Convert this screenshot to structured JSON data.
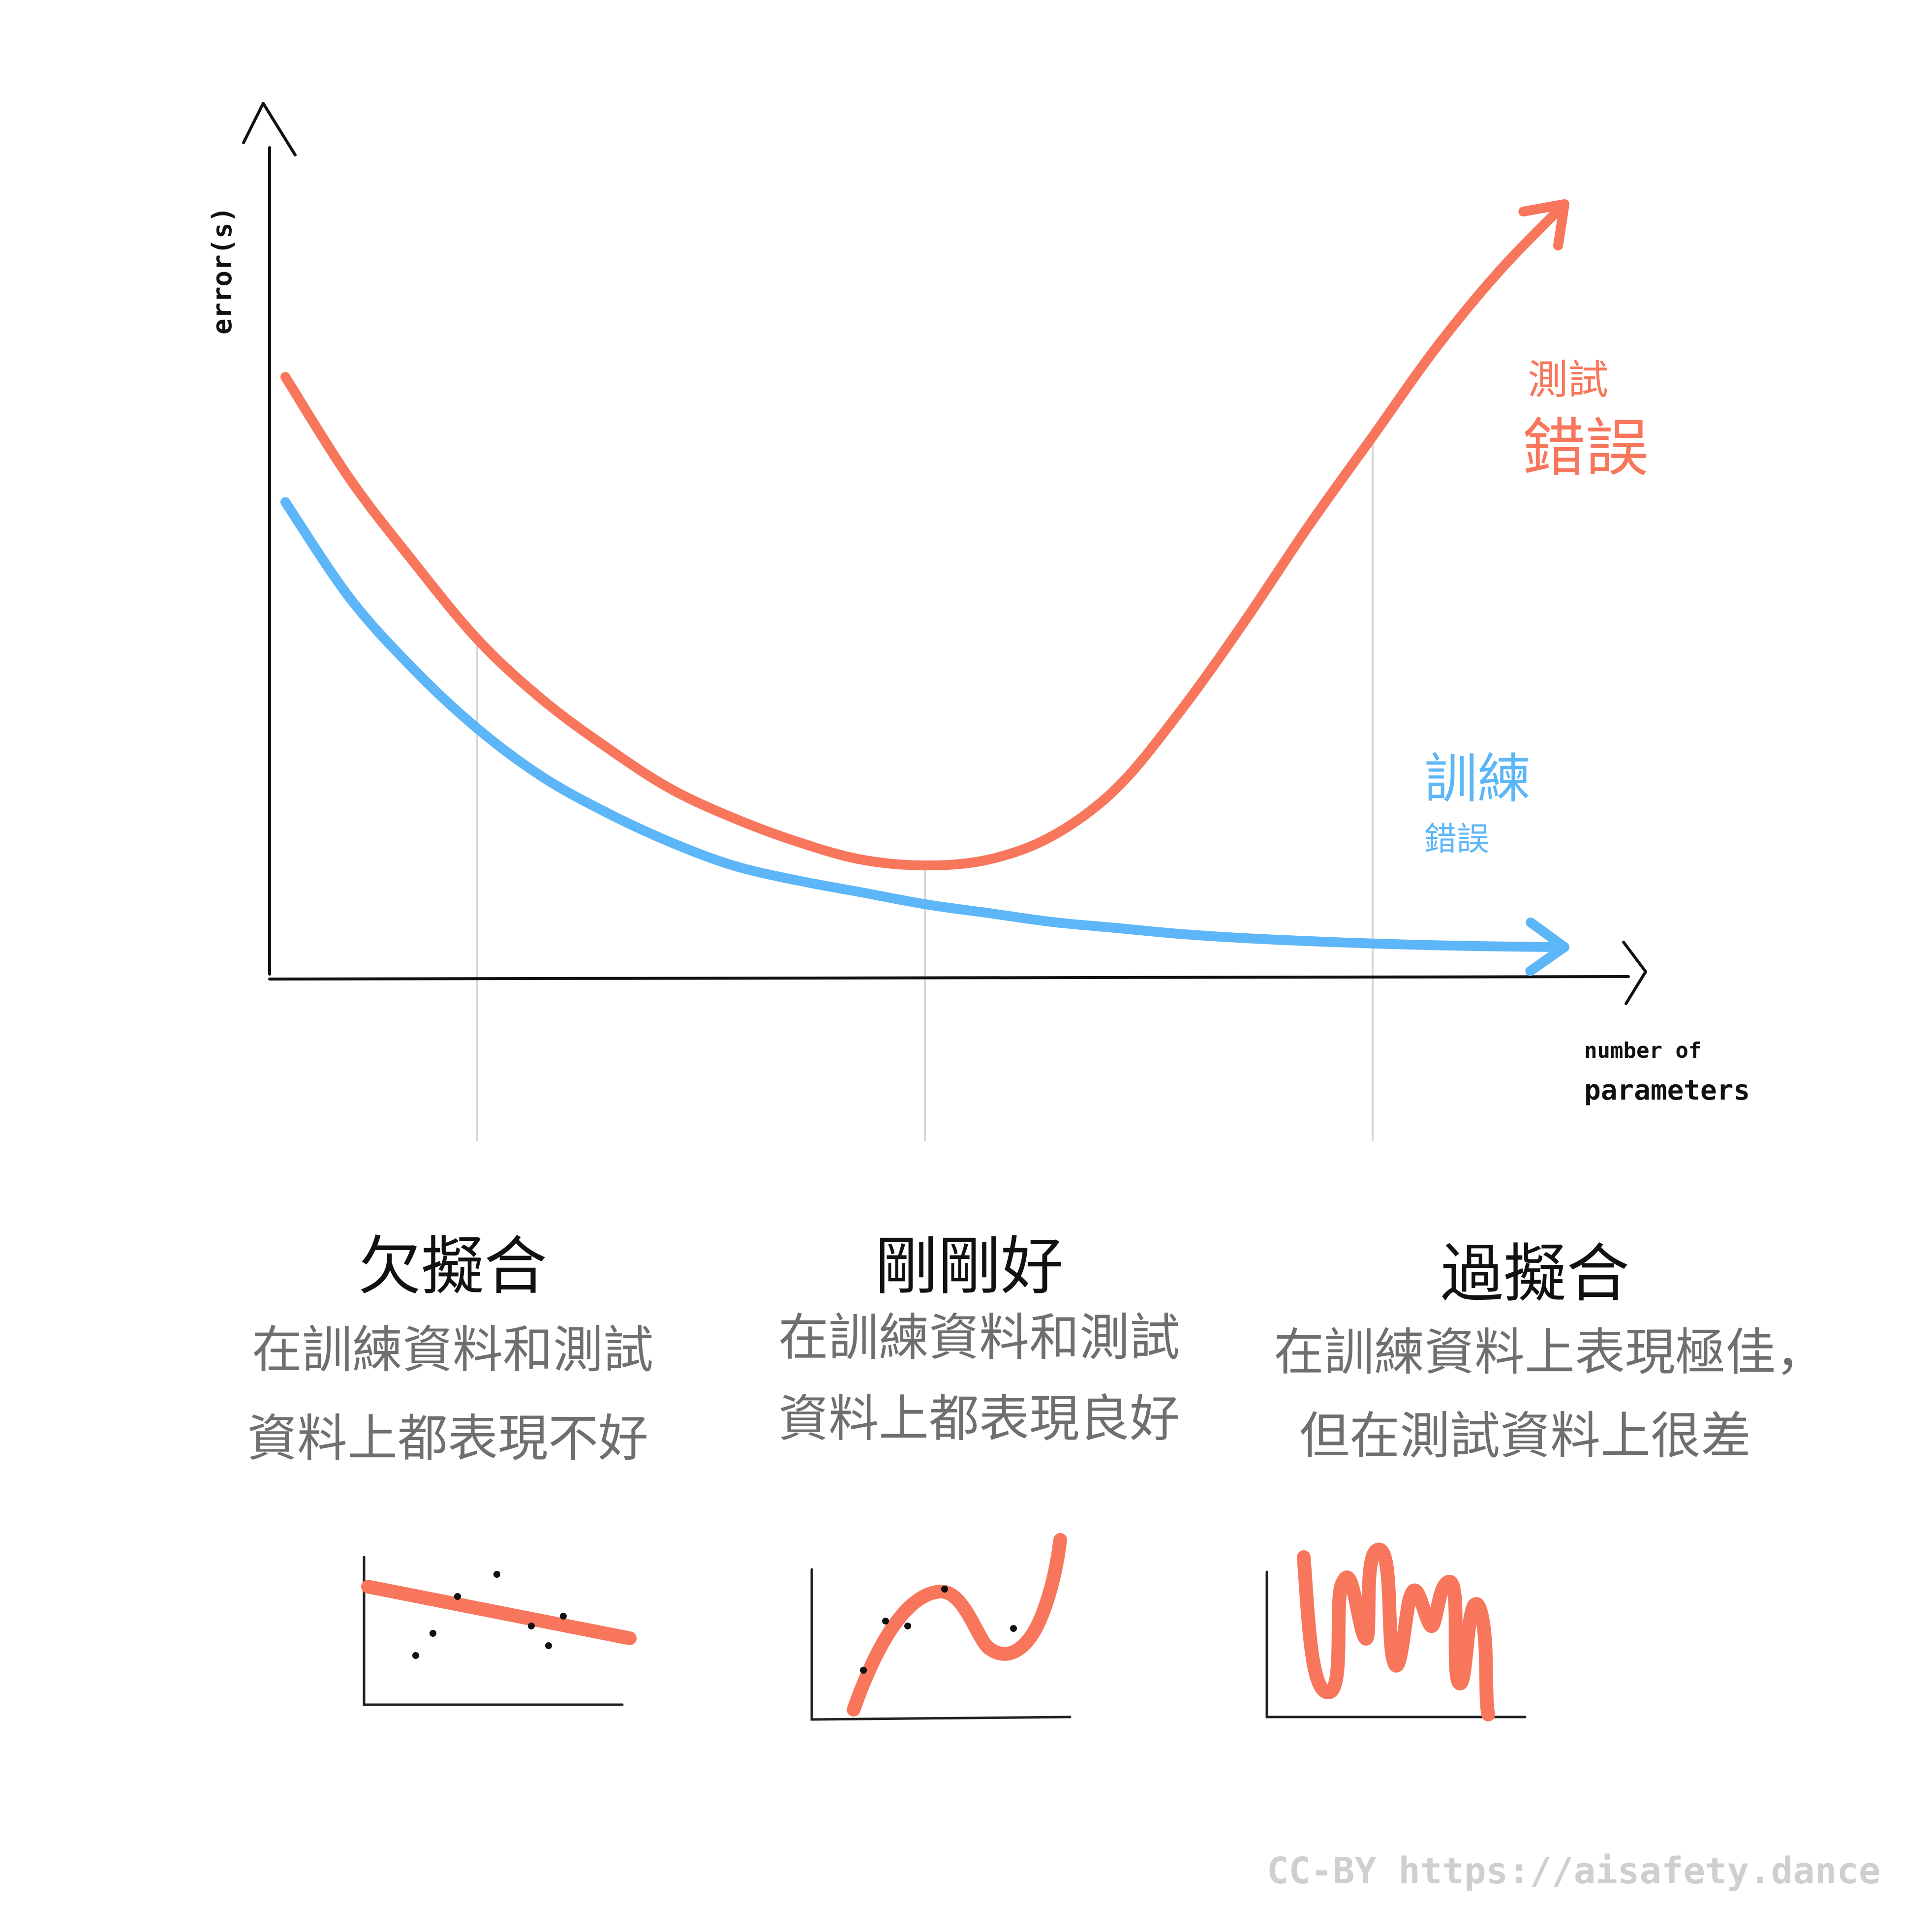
{
  "chart_data": {
    "type": "line",
    "xlabel": "number of parameters",
    "xlabel_lines": [
      "number of",
      "parameters"
    ],
    "ylabel": "error(s)",
    "grid": false,
    "legend": "inline labels at right end of curves",
    "colors": {
      "test": "#f7765c",
      "train": "#5cb6f7",
      "axis": "#111111",
      "guide": "#d6d6d6"
    },
    "x": [
      0,
      1,
      2,
      3,
      4,
      5,
      6,
      7,
      8,
      9,
      10,
      11,
      12,
      13,
      14,
      15,
      16,
      17,
      18,
      19,
      20
    ],
    "series": [
      {
        "name": "測試錯誤",
        "label_lines": [
          "測試",
          "錯誤"
        ],
        "values": [
          0.99,
          0.82,
          0.68,
          0.55,
          0.45,
          0.37,
          0.3,
          0.25,
          0.21,
          0.18,
          0.17,
          0.18,
          0.22,
          0.3,
          0.43,
          0.58,
          0.74,
          0.89,
          1.04,
          1.17,
          1.28
        ]
      },
      {
        "name": "訓練錯誤",
        "label_lines": [
          "訓練",
          "錯誤"
        ],
        "values": [
          0.78,
          0.62,
          0.5,
          0.4,
          0.32,
          0.26,
          0.21,
          0.17,
          0.145,
          0.125,
          0.105,
          0.09,
          0.075,
          0.065,
          0.055,
          0.048,
          0.043,
          0.039,
          0.036,
          0.034,
          0.033
        ]
      }
    ],
    "regimes": [
      {
        "title": "欠擬合",
        "desc_lines": [
          "在訓練資料和測試",
          "資料上都表現不好"
        ],
        "x": 3
      },
      {
        "title": "剛剛好",
        "desc_lines": [
          "在訓練資料和測試",
          "資料上都表現良好"
        ],
        "x": 10
      },
      {
        "title": "過擬合",
        "desc_lines": [
          "在訓練資料上表現極佳，",
          "但在測試資料上很差"
        ],
        "x": 17
      }
    ]
  },
  "credit": "CC-BY https://aisafety.dance"
}
